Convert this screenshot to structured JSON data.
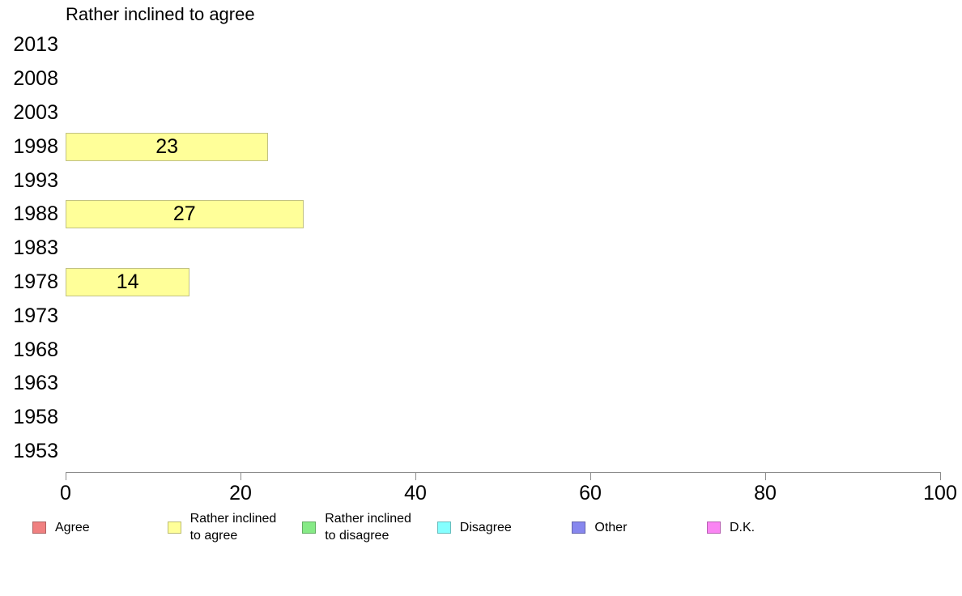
{
  "chart_data": {
    "type": "bar",
    "orientation": "horizontal",
    "title": "Rather inclined to agree",
    "categories": [
      "2013",
      "2008",
      "2003",
      "1998",
      "1993",
      "1988",
      "1983",
      "1978",
      "1973",
      "1968",
      "1963",
      "1958",
      "1953"
    ],
    "values": [
      null,
      null,
      null,
      23,
      null,
      27,
      null,
      14,
      null,
      null,
      null,
      null,
      null
    ],
    "xlabel": "",
    "ylabel": "",
    "xlim": [
      0,
      100
    ],
    "x_ticks": [
      0,
      20,
      40,
      60,
      80,
      100
    ],
    "grid": false,
    "bar_color": "#ffff99",
    "bar_border_color": "#c2c284",
    "axis_color": "#8c8c8c",
    "legend_position": "bottom",
    "legend": [
      {
        "label": "Agree",
        "color": "#f08080",
        "border": "#ad6363"
      },
      {
        "label": "Rather inclined\nto agree",
        "color": "#ffff99",
        "border": "#bcbc74"
      },
      {
        "label": "Rather inclined\nto disagree",
        "color": "#86ea86",
        "border": "#64ad64"
      },
      {
        "label": "Disagree",
        "color": "#85ffff",
        "border": "#68bcbc"
      },
      {
        "label": "Other",
        "color": "#8787ee",
        "border": "#6464ad"
      },
      {
        "label": "D.K.",
        "color": "#fa85f3",
        "border": "#b863b3"
      }
    ]
  }
}
